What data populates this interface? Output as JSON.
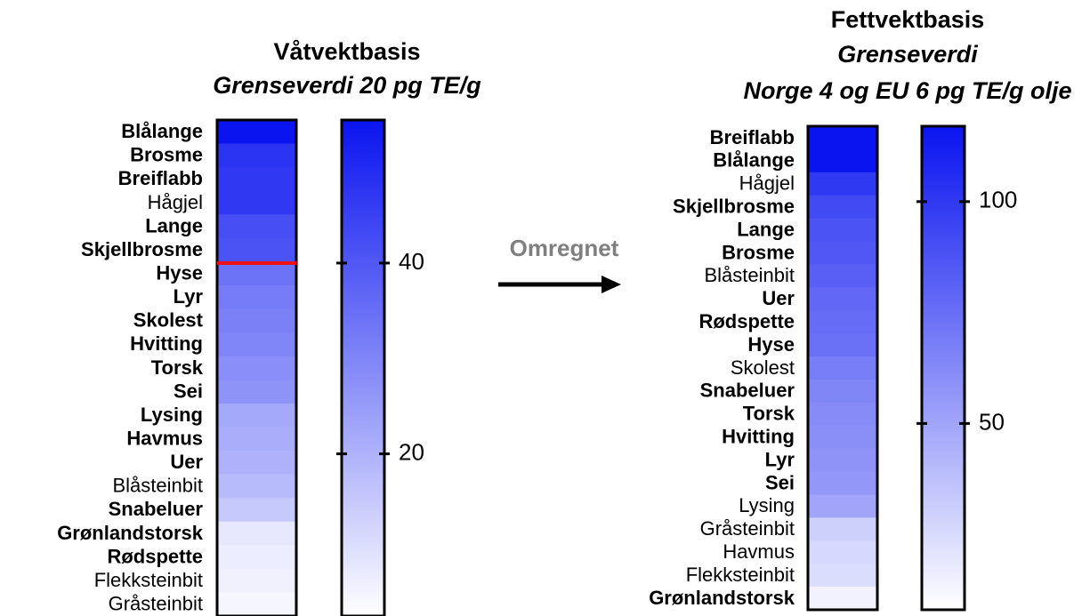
{
  "chart_data": [
    {
      "type": "heatmap",
      "title": "Våtvektbasis",
      "subtitle": [
        "Grenseverdi 20 pg TE/g"
      ],
      "categories": [
        "Blålange",
        "Brosme",
        "Breiflabb",
        "Hågjel",
        "Lange",
        "Skjellbrosme",
        "Hyse",
        "Lyr",
        "Skolest",
        "Hvitting",
        "Torsk",
        "Sei",
        "Lysing",
        "Havmus",
        "Uer",
        "Blåsteinbit",
        "Snabeluer",
        "Grønlandstorsk",
        "Rødspette",
        "Flekksteinbit",
        "Gråsteinbit"
      ],
      "bold": [
        true,
        true,
        true,
        false,
        true,
        true,
        true,
        true,
        true,
        true,
        true,
        true,
        true,
        true,
        true,
        false,
        true,
        true,
        true,
        false,
        false
      ],
      "values": [
        55,
        48,
        47,
        47,
        42,
        41,
        34,
        32,
        31,
        30,
        28,
        27,
        22,
        21,
        20,
        18,
        15,
        8,
        7,
        6,
        5
      ],
      "zlim": [
        3,
        55
      ],
      "zticks": [
        20,
        40
      ],
      "color": "#0a14f0",
      "threshold": 40,
      "threshold_color": "#ee1111"
    },
    {
      "type": "heatmap",
      "title": "Fettvektbasis",
      "subtitle": [
        "Grenseverdi",
        "Norge 4 og EU 6 pg TE/g olje"
      ],
      "categories": [
        "Breiflabb",
        "Blålange",
        "Hågjel",
        "Skjellbrosme",
        "Lange",
        "Brosme",
        "Blåsteinbit",
        "Uer",
        "Rødspette",
        "Hyse",
        "Skolest",
        "Snabeluer",
        "Torsk",
        "Hvitting",
        "Lyr",
        "Sei",
        "Lysing",
        "Gråsteinbit",
        "Havmus",
        "Flekksteinbit",
        "Grønlandstorsk"
      ],
      "bold": [
        true,
        true,
        false,
        true,
        true,
        true,
        false,
        true,
        true,
        true,
        false,
        true,
        true,
        true,
        true,
        true,
        false,
        false,
        false,
        false,
        true
      ],
      "values": [
        117,
        117,
        100,
        92,
        88,
        86,
        82,
        78,
        76,
        74,
        68,
        64,
        62,
        60,
        58,
        56,
        50,
        30,
        26,
        24,
        14
      ],
      "zlim": [
        8,
        117
      ],
      "zticks": [
        50,
        100
      ],
      "color": "#0a14f0"
    }
  ],
  "annotation": "Omregnet"
}
